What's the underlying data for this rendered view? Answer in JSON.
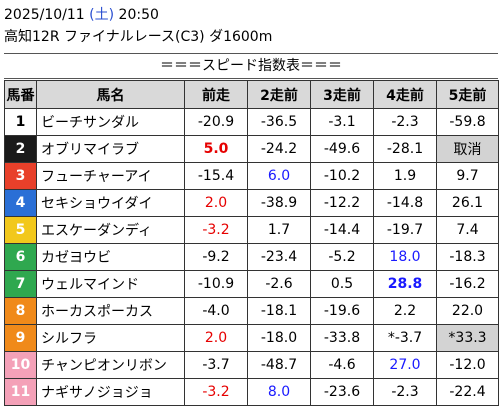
{
  "header": {
    "date": "2025/10/11",
    "weekday": "(土)",
    "time": "20:50",
    "race": "高知12R ファイナルレース(C3) ダ1600m"
  },
  "section_title": "＝＝＝スピード指数表＝＝＝",
  "columns": [
    "馬番",
    "馬名",
    "前走",
    "2走前",
    "3走前",
    "4走前",
    "5走前"
  ],
  "rows": [
    {
      "no": "1",
      "name": "ビーチサンダル",
      "vals": [
        "-20.9",
        "-36.5",
        "-3.1",
        "-2.3",
        "-59.8"
      ],
      "frame_color": "#ffffff",
      "no_color": "#000000"
    },
    {
      "no": "2",
      "name": "オブリマイラブ",
      "vals": [
        "5.0",
        "-24.2",
        "-49.6",
        "-28.1",
        "取消"
      ],
      "frame_color": "#1a1a1a",
      "no_color": "#ffffff"
    },
    {
      "no": "3",
      "name": "フューチャーアイ",
      "vals": [
        "-15.4",
        "6.0",
        "-10.2",
        "1.9",
        "9.7"
      ],
      "frame_color": "#e8402a",
      "no_color": "#ffffff"
    },
    {
      "no": "4",
      "name": "セキショウイダイ",
      "vals": [
        "2.0",
        "-38.9",
        "-12.2",
        "-14.8",
        "26.1"
      ],
      "frame_color": "#2a6fd6",
      "no_color": "#ffffff"
    },
    {
      "no": "5",
      "name": "エスケーダンディ",
      "vals": [
        "-3.2",
        "1.7",
        "-14.4",
        "-19.7",
        "7.4"
      ],
      "frame_color": "#f2c81c",
      "no_color": "#ffffff"
    },
    {
      "no": "6",
      "name": "カゼヨウビ",
      "vals": [
        "-9.2",
        "-23.4",
        "-5.2",
        "18.0",
        "-18.3"
      ],
      "frame_color": "#2fa84f",
      "no_color": "#ffffff"
    },
    {
      "no": "7",
      "name": "ウェルマインド",
      "vals": [
        "-10.9",
        "-2.6",
        "0.5",
        "28.8",
        "-16.2"
      ],
      "frame_color": "#2fa84f",
      "no_color": "#ffffff"
    },
    {
      "no": "8",
      "name": "ホーカスポーカス",
      "vals": [
        "-4.0",
        "-18.1",
        "-19.6",
        "2.2",
        "22.0"
      ],
      "frame_color": "#f08a1a",
      "no_color": "#ffffff"
    },
    {
      "no": "9",
      "name": "シルフラ",
      "vals": [
        "2.0",
        "-18.0",
        "-33.8",
        "*-3.7",
        "*33.3"
      ],
      "frame_color": "#f08a1a",
      "no_color": "#ffffff"
    },
    {
      "no": "10",
      "name": "チャンピオンリボン",
      "vals": [
        "-3.7",
        "-48.7",
        "-4.6",
        "27.0",
        "-12.0"
      ],
      "frame_color": "#f4a1b8",
      "no_color": "#ffffff"
    },
    {
      "no": "11",
      "name": "ナギサノジョジョ",
      "vals": [
        "-3.2",
        "8.0",
        "-23.6",
        "-2.3",
        "-22.4"
      ],
      "frame_color": "#f4a1b8",
      "no_color": "#ffffff"
    }
  ],
  "cell_styles": {
    "1-0": "red bold",
    "2-1": "blue",
    "3-0": "red",
    "4-0": "red",
    "5-3": "blue",
    "6-3": "blue bold",
    "8-0": "red",
    "9-3": "blue",
    "10-0": "red",
    "10-1": "blue",
    "1-4": "gray",
    "8-4": "gray"
  }
}
